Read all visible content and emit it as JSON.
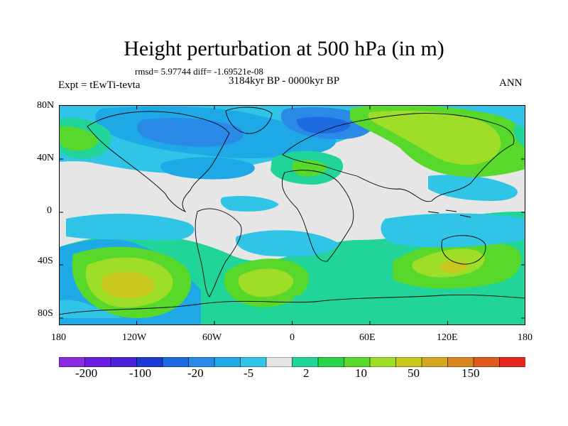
{
  "title": "Height perturbation at 500 hPa (in m)",
  "stats_line": "rmsd= 5.97744 diff= -1.69521e-08",
  "period": "3184kyr BP - 0000kyr BP",
  "experiment": "Expt = tEwTi-tevta",
  "season": "ANN",
  "lat_labels": [
    "80N",
    "40N",
    "0",
    "40S",
    "80S"
  ],
  "lon_labels": [
    "180",
    "120W",
    "60W",
    "0",
    "60E",
    "120E",
    "180"
  ],
  "colorbar": {
    "colors": [
      "#8a2be2",
      "#6a1ce0",
      "#4a22d8",
      "#1e3ad6",
      "#1e6ae0",
      "#2a8ae8",
      "#1ea8e6",
      "#30c4e6",
      "#e6e6e6",
      "#20d49a",
      "#28d44a",
      "#58d82a",
      "#9ede28",
      "#c8c81e",
      "#d4a81e",
      "#d8861e",
      "#e05a1e",
      "#e4281e"
    ],
    "labels": [
      "-200",
      "-100",
      "-20",
      "-5",
      "2",
      "10",
      "50",
      "150"
    ]
  }
}
